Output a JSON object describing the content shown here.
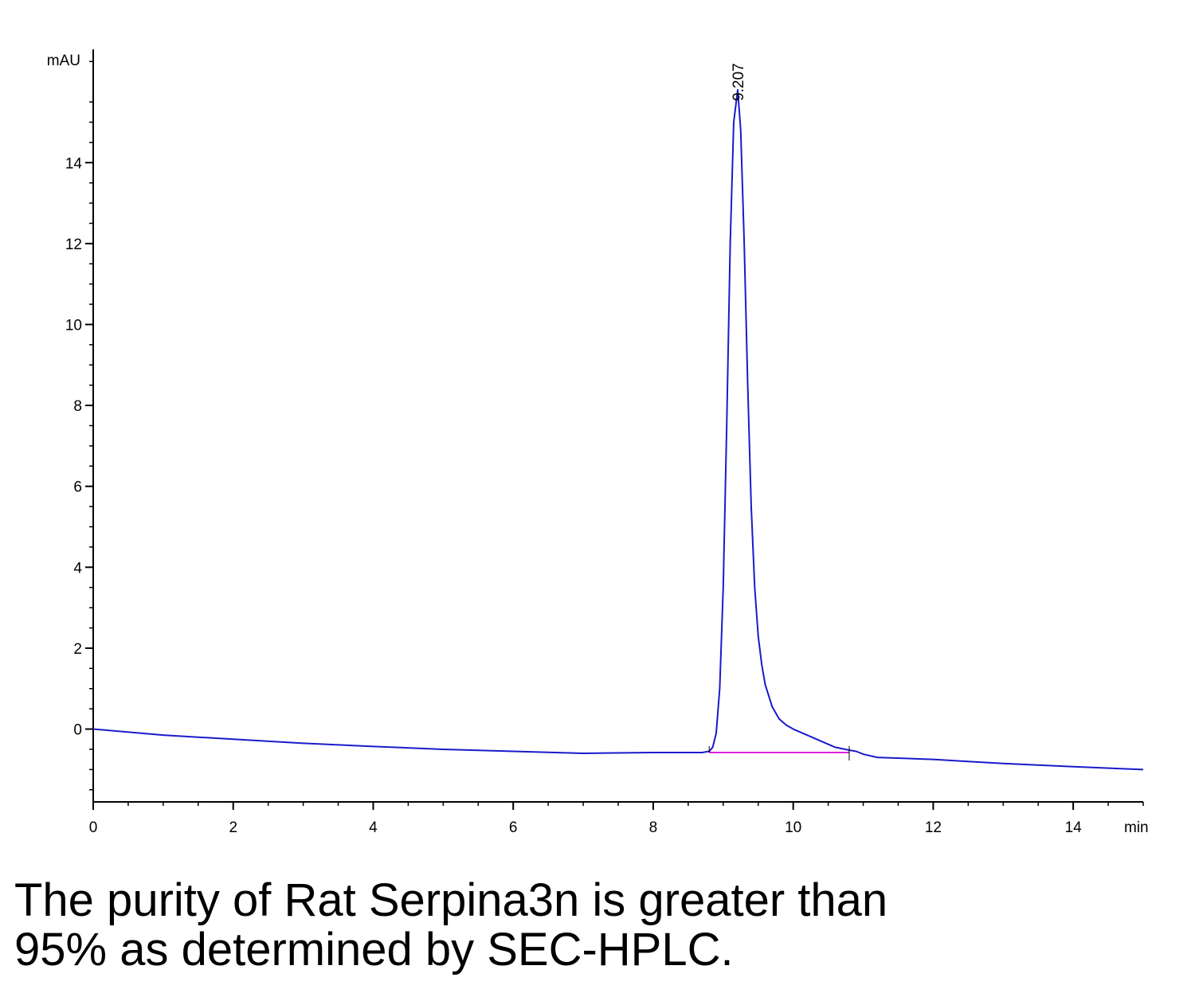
{
  "chart_data": {
    "type": "line",
    "xlabel": "min",
    "ylabel": "mAU",
    "xlim": [
      0,
      15
    ],
    "ylim": [
      -1.8,
      16.8
    ],
    "x_ticks": [
      0,
      2,
      4,
      6,
      8,
      10,
      12,
      14
    ],
    "y_ticks": [
      0,
      2,
      4,
      6,
      8,
      10,
      12,
      14
    ],
    "grid": false,
    "series": [
      {
        "color": "#1a1acc",
        "x": [
          0,
          1,
          2,
          3,
          4,
          5,
          6,
          7,
          8,
          8.7,
          8.8,
          8.85,
          8.9,
          8.95,
          9.0,
          9.05,
          9.1,
          9.15,
          9.207,
          9.25,
          9.3,
          9.35,
          9.4,
          9.45,
          9.5,
          9.55,
          9.6,
          9.7,
          9.8,
          9.9,
          10.0,
          10.2,
          10.4,
          10.6,
          10.8,
          10.9,
          11.0,
          11.2,
          12.0,
          12.5,
          13.0,
          14.0,
          15.0
        ],
        "y": [
          0.0,
          -0.15,
          -0.25,
          -0.35,
          -0.43,
          -0.5,
          -0.55,
          -0.6,
          -0.58,
          -0.58,
          -0.55,
          -0.45,
          -0.1,
          1.0,
          3.5,
          7.5,
          12.0,
          15.0,
          15.8,
          14.8,
          12.0,
          8.5,
          5.5,
          3.5,
          2.3,
          1.6,
          1.1,
          0.55,
          0.25,
          0.1,
          0.0,
          -0.15,
          -0.3,
          -0.45,
          -0.52,
          -0.55,
          -0.62,
          -0.7,
          -0.75,
          -0.8,
          -0.85,
          -0.93,
          -1.0
        ]
      },
      {
        "color": "#e020e0",
        "x": [
          8.8,
          10.8
        ],
        "y": [
          -0.58,
          -0.58
        ]
      }
    ],
    "annotations": [
      {
        "text": "9.207",
        "x": 9.207,
        "y": 15.8
      }
    ]
  },
  "caption": {
    "line1": "The purity of Rat Serpina3n is greater than",
    "line2": "95% as determined by SEC-HPLC."
  }
}
